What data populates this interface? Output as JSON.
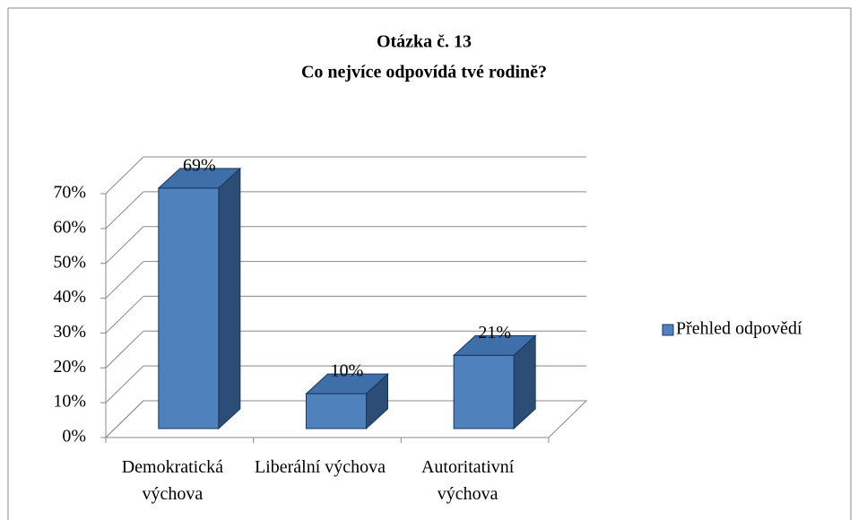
{
  "chart_data": {
    "type": "bar3d",
    "title": [
      "Otázka č. 13",
      "Co nejvíce odpovídá tvé rodině?"
    ],
    "categories": [
      "Demokratická výchova",
      "Liberální výchova",
      "Autoritativní výchova"
    ],
    "series": [
      {
        "name": "Přehled odpovědí",
        "color": "#4f81bd",
        "values": [
          69,
          10,
          21
        ],
        "value_labels": [
          "69%",
          "10%",
          "21%"
        ]
      }
    ],
    "ylim": [
      0,
      70
    ],
    "yticks": [
      {
        "value": 0,
        "label": "0%"
      },
      {
        "value": 10,
        "label": "10%"
      },
      {
        "value": 20,
        "label": "20%"
      },
      {
        "value": 30,
        "label": "30%"
      },
      {
        "value": 40,
        "label": "40%"
      },
      {
        "value": 50,
        "label": "50%"
      },
      {
        "value": 60,
        "label": "60%"
      },
      {
        "value": 70,
        "label": "70%"
      }
    ],
    "grid": true,
    "legend": "right"
  }
}
